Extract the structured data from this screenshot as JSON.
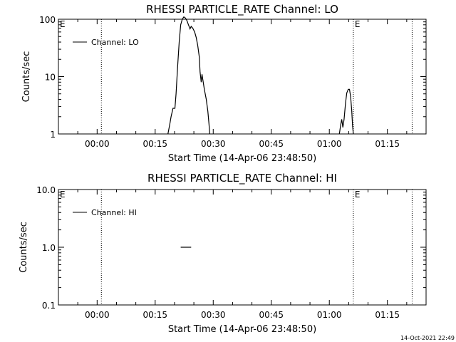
{
  "timestamp": "14-Oct-2021 22:49",
  "chart_data": [
    {
      "type": "line",
      "title": "RHESSI PARTICLE_RATE Channel: LO",
      "xlabel": "Start Time (14-Apr-06 23:48:50)",
      "ylabel": "Counts/sec",
      "yscale": "log",
      "ylim": [
        1,
        100
      ],
      "xlim_minutes": [
        -10,
        85
      ],
      "x_ticks": [
        {
          "t": 0,
          "label": "00:00"
        },
        {
          "t": 15,
          "label": "00:15"
        },
        {
          "t": 30,
          "label": "00:30"
        },
        {
          "t": 45,
          "label": "00:45"
        },
        {
          "t": 60,
          "label": "01:00"
        },
        {
          "t": 75,
          "label": "01:15"
        }
      ],
      "y_ticks": [
        {
          "v": 1,
          "label": "1"
        },
        {
          "v": 10,
          "label": "10"
        },
        {
          "v": 100,
          "label": "100"
        }
      ],
      "vlines_minutes": [
        1.1,
        66.2,
        81.4
      ],
      "markers": [
        {
          "t": -10,
          "label": "E"
        },
        {
          "t": 66.2,
          "label": "E"
        }
      ],
      "legend": "top-left",
      "series": [
        {
          "name": "Channel: LO",
          "segments": [
            [
              [
                18.3,
                1
              ],
              [
                18.8,
                1.5
              ],
              [
                19.1,
                2.0
              ],
              [
                19.6,
                2.8
              ],
              [
                20.1,
                2.8
              ],
              [
                20.4,
                5
              ],
              [
                20.8,
                15
              ],
              [
                21.2,
                40
              ],
              [
                21.6,
                80
              ],
              [
                22.0,
                100
              ],
              [
                22.4,
                110
              ],
              [
                22.8,
                105
              ],
              [
                23.2,
                95
              ],
              [
                23.6,
                80
              ],
              [
                24.0,
                68
              ],
              [
                24.3,
                75
              ],
              [
                24.7,
                70
              ],
              [
                25.2,
                60
              ],
              [
                25.6,
                48
              ],
              [
                26.0,
                35
              ],
              [
                26.4,
                22
              ],
              [
                26.6,
                12
              ],
              [
                26.9,
                8
              ],
              [
                27.1,
                11
              ],
              [
                27.3,
                9
              ],
              [
                27.7,
                6
              ],
              [
                28.2,
                4
              ],
              [
                28.6,
                2.5
              ],
              [
                28.9,
                1.5
              ],
              [
                29.1,
                1
              ]
            ],
            [
              [
                62.6,
                1
              ],
              [
                62.9,
                1.4
              ],
              [
                63.2,
                1.8
              ],
              [
                63.5,
                1.3
              ],
              [
                63.8,
                1.8
              ],
              [
                64.2,
                3.5
              ],
              [
                64.5,
                5.2
              ],
              [
                64.9,
                6.0
              ],
              [
                65.2,
                6.0
              ],
              [
                65.5,
                4.5
              ],
              [
                65.8,
                2.5
              ],
              [
                66.0,
                1.4
              ],
              [
                66.2,
                1
              ]
            ]
          ]
        }
      ]
    },
    {
      "type": "line",
      "title": "RHESSI PARTICLE_RATE Channel: HI",
      "xlabel": "Start Time (14-Apr-06 23:48:50)",
      "ylabel": "Counts/sec",
      "yscale": "log",
      "ylim": [
        0.1,
        10
      ],
      "xlim_minutes": [
        -10,
        85
      ],
      "x_ticks": [
        {
          "t": 0,
          "label": "00:00"
        },
        {
          "t": 15,
          "label": "00:15"
        },
        {
          "t": 30,
          "label": "00:30"
        },
        {
          "t": 45,
          "label": "00:45"
        },
        {
          "t": 60,
          "label": "01:00"
        },
        {
          "t": 75,
          "label": "01:15"
        }
      ],
      "y_ticks": [
        {
          "v": 0.1,
          "label": "0.1"
        },
        {
          "v": 1,
          "label": "1.0"
        },
        {
          "v": 10,
          "label": "10.0"
        }
      ],
      "vlines_minutes": [
        1.1,
        66.2,
        81.4
      ],
      "markers": [
        {
          "t": -10,
          "label": "E"
        },
        {
          "t": 66.2,
          "label": "E"
        }
      ],
      "legend": "top-left",
      "series": [
        {
          "name": "Channel: HI",
          "segments": [
            [
              [
                21.6,
                1.0
              ],
              [
                24.3,
                1.0
              ]
            ]
          ]
        }
      ]
    }
  ]
}
